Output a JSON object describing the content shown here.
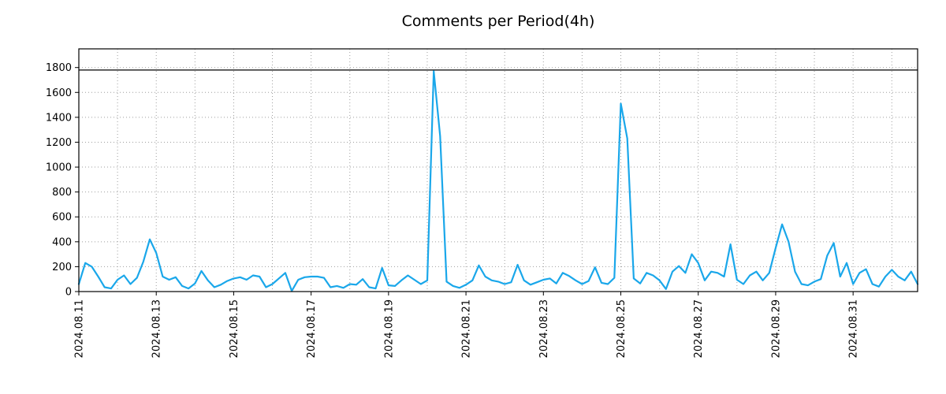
{
  "figure": {
    "title": "Comments per Period(4h)"
  },
  "colors": {
    "line": "#1aa7ea",
    "grid": "#9e9e9e",
    "axis": "#000000",
    "hline": "#000000",
    "background": "#ffffff",
    "text": "#000000"
  },
  "chart_data": {
    "type": "line",
    "title": "Comments per Period(4h)",
    "series_name": "comments",
    "period_hours": 4,
    "start_label": "2024.08.11",
    "x_tick_labels": [
      "2024.08.11",
      "2024.08.13",
      "2024.08.15",
      "2024.08.17",
      "2024.08.19",
      "2024.08.21",
      "2024.08.23",
      "2024.08.25",
      "2024.08.27",
      "2024.08.29",
      "2024.08.31"
    ],
    "x_tick_step_days": 2,
    "x_label_rotation": 90,
    "y_ticks": [
      0,
      200,
      400,
      600,
      800,
      1000,
      1200,
      1400,
      1600,
      1800
    ],
    "ylim": [
      0,
      1950
    ],
    "hline_y": 1780,
    "grid": "dotted",
    "legend": "none",
    "values": [
      60,
      230,
      200,
      120,
      35,
      25,
      95,
      130,
      60,
      110,
      240,
      420,
      310,
      120,
      95,
      115,
      45,
      25,
      65,
      165,
      90,
      35,
      55,
      85,
      105,
      115,
      95,
      130,
      120,
      35,
      60,
      105,
      150,
      5,
      95,
      115,
      120,
      120,
      110,
      35,
      45,
      30,
      60,
      55,
      100,
      35,
      25,
      190,
      50,
      45,
      90,
      130,
      95,
      60,
      90,
      1770,
      1250,
      80,
      45,
      30,
      55,
      90,
      210,
      120,
      90,
      80,
      60,
      75,
      215,
      90,
      55,
      75,
      95,
      105,
      65,
      150,
      125,
      90,
      60,
      85,
      195,
      70,
      60,
      110,
      1510,
      1230,
      105,
      65,
      150,
      130,
      90,
      20,
      160,
      205,
      150,
      300,
      230,
      90,
      160,
      150,
      120,
      380,
      95,
      60,
      130,
      160,
      90,
      150,
      350,
      540,
      400,
      160,
      60,
      50,
      80,
      100,
      290,
      390,
      120,
      230,
      60,
      150,
      180,
      60,
      40,
      120,
      175,
      120,
      90,
      160,
      60
    ]
  }
}
